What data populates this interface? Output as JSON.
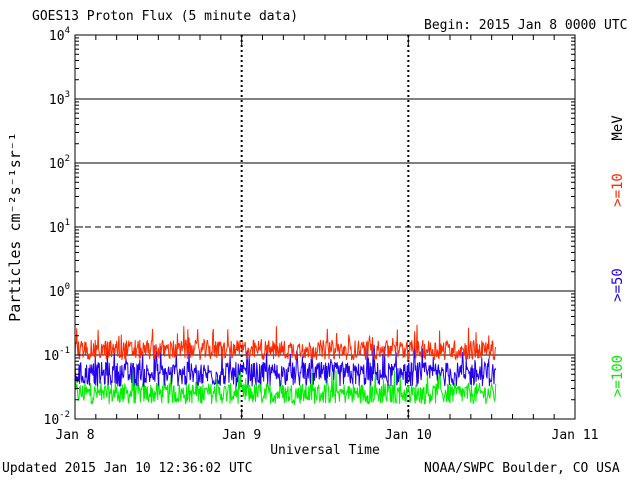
{
  "header": {
    "title": "GOES13 Proton Flux (5 minute data)",
    "begin": "Begin: 2015 Jan 8 0000 UTC"
  },
  "footer": {
    "updated": "Updated 2015 Jan 10 12:36:02 UTC",
    "source": "NOAA/SWPC Boulder, CO USA"
  },
  "chart_data": {
    "type": "line",
    "title": "GOES13 Proton Flux (5 minute data)",
    "xlabel": "Universal Time",
    "ylabel": "Particles cm⁻²s⁻¹sr⁻¹",
    "y_scale": "log",
    "ylim": [
      0.01,
      10000
    ],
    "xlim": [
      "2015-01-08 00:00",
      "2015-01-11 00:00"
    ],
    "x_ticks": [
      "Jan 8",
      "Jan 9",
      "Jan 10",
      "Jan 11"
    ],
    "y_ticks": [
      {
        "base": "10",
        "exp": "-2",
        "value": 0.01
      },
      {
        "base": "10",
        "exp": "-1",
        "value": 0.1
      },
      {
        "base": "10",
        "exp": "0",
        "value": 1
      },
      {
        "base": "10",
        "exp": "1",
        "value": 10
      },
      {
        "base": "10",
        "exp": "2",
        "value": 100
      },
      {
        "base": "10",
        "exp": "3",
        "value": 1000
      },
      {
        "base": "10",
        "exp": "4",
        "value": 10000
      }
    ],
    "data_end": "2015-01-10 12:35",
    "reference_lines": [
      {
        "value": 10,
        "style": "dashed"
      },
      {
        "value": 1,
        "style": "solid"
      },
      {
        "value": 0.1,
        "style": "solid"
      }
    ],
    "legend_placement": "right",
    "unit_label": "MeV",
    "series": [
      {
        "name": ">=10",
        "color": "#ff2a00",
        "typical": 0.12,
        "range": [
          0.08,
          0.3
        ]
      },
      {
        "name": ">=50",
        "color": "#2200ee",
        "typical": 0.05,
        "range": [
          0.03,
          0.15
        ]
      },
      {
        "name": ">=100",
        "color": "#00ee00",
        "typical": 0.025,
        "range": [
          0.015,
          0.06
        ]
      }
    ]
  }
}
